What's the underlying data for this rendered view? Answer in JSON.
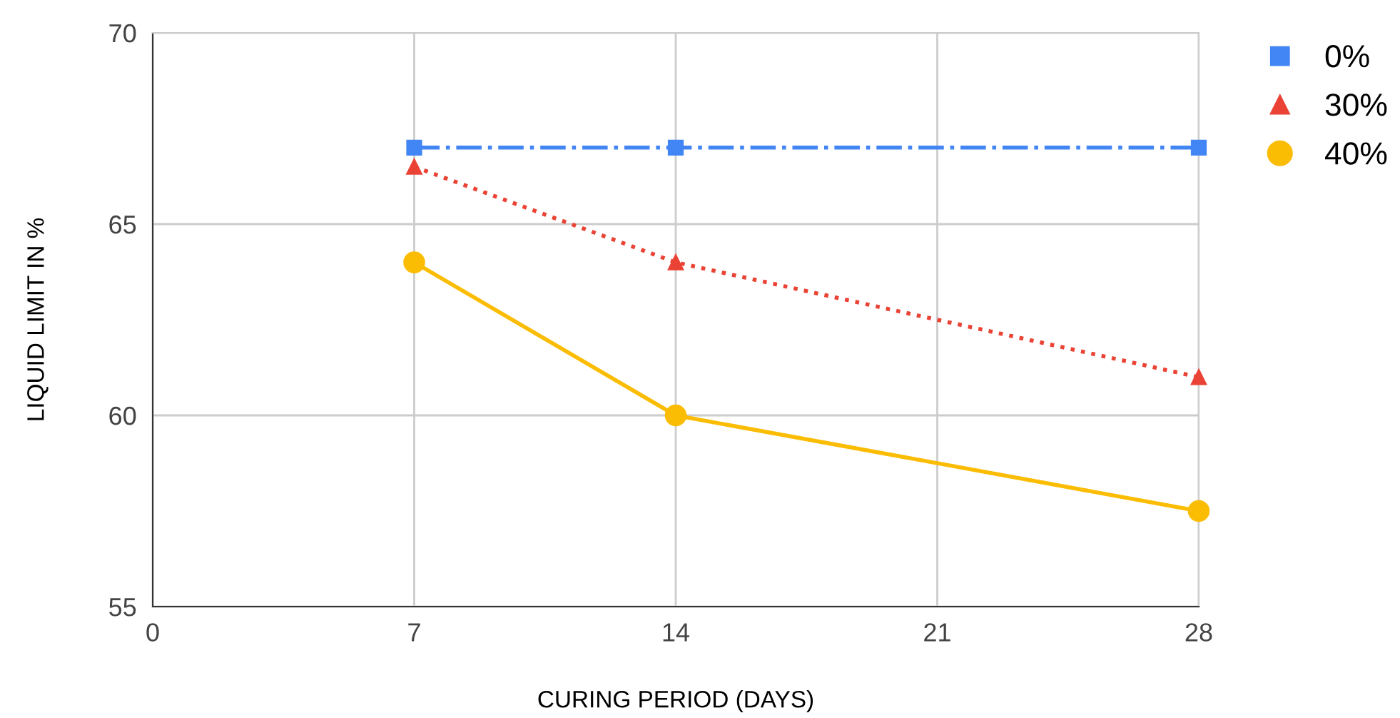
{
  "chart_data": {
    "type": "line",
    "xlabel": "CURING PERIOD (DAYS)",
    "ylabel": "LIQUID LIMIT IN %",
    "x": [
      7,
      14,
      28
    ],
    "series": [
      {
        "name": "0%",
        "color": "#4285f4",
        "values": [
          67,
          67,
          67
        ],
        "marker": "square",
        "line_style": "dashdot"
      },
      {
        "name": "30%",
        "color": "#ea4335",
        "values": [
          66.5,
          64,
          61
        ],
        "marker": "triangle",
        "line_style": "dotted"
      },
      {
        "name": "40%",
        "color": "#fbbc04",
        "values": [
          64,
          60,
          57.5
        ],
        "marker": "circle",
        "line_style": "solid"
      }
    ],
    "xlim": [
      0,
      28
    ],
    "xticks": [
      0,
      7,
      14,
      21,
      28
    ],
    "ylim": [
      55,
      70
    ],
    "yticks": [
      55,
      60,
      65,
      70
    ],
    "grid": true,
    "legend": "top right"
  }
}
